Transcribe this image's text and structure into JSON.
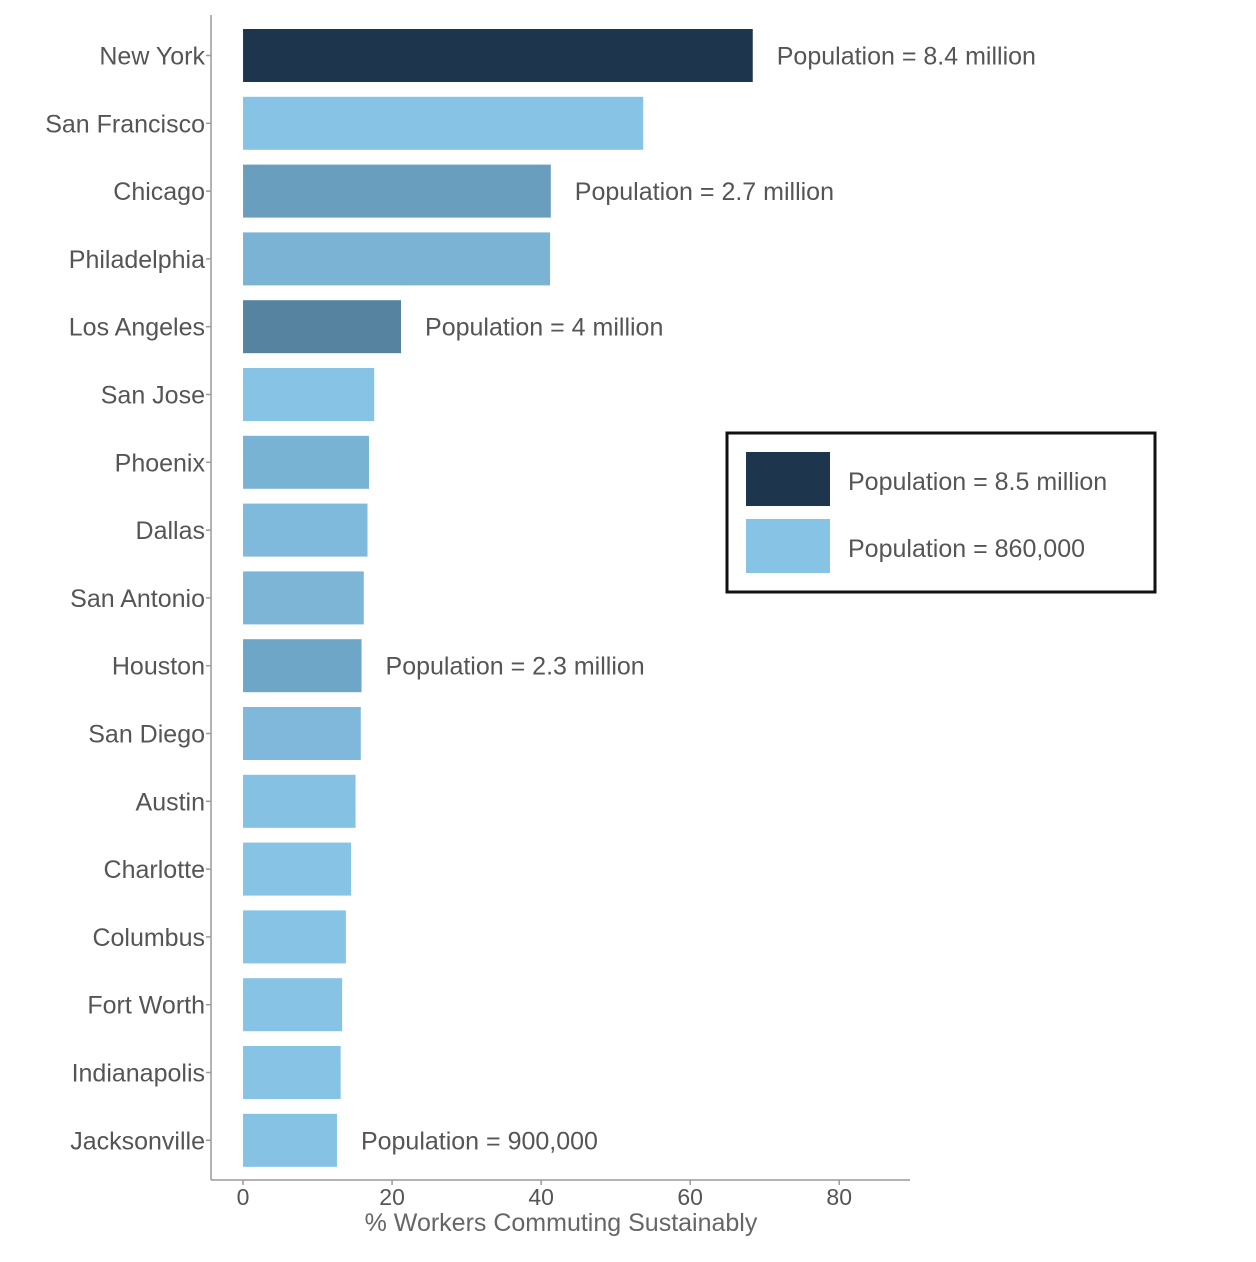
{
  "chart_data": {
    "type": "bar",
    "orientation": "horizontal",
    "title": "",
    "xlabel": "% Workers Commuting Sustainably",
    "ylabel": "",
    "xlim": [
      -4.3,
      89.5
    ],
    "xticks": [
      0,
      20,
      40,
      60,
      80
    ],
    "grid": false,
    "categories": [
      "New York",
      "San Francisco",
      "Chicago",
      "Philadelphia",
      "Los Angeles",
      "San Jose",
      "Phoenix",
      "Dallas",
      "San Antonio",
      "Houston",
      "San Diego",
      "Austin",
      "Charlotte",
      "Columbus",
      "Fort Worth",
      "Indianapolis",
      "Jacksonville"
    ],
    "values": [
      68.4,
      53.7,
      41.3,
      41.2,
      21.2,
      17.6,
      16.9,
      16.7,
      16.2,
      15.9,
      15.8,
      15.1,
      14.5,
      13.8,
      13.3,
      13.1,
      12.6
    ],
    "bar_colors": [
      "#1d364e",
      "#86c3e5",
      "#6a9ebf",
      "#7bb3d5",
      "#56839f",
      "#86c3e5",
      "#79b3d4",
      "#7fb9db",
      "#7db5d7",
      "#6ea6c7",
      "#7fb8da",
      "#84c1e3",
      "#86c3e5",
      "#86c3e5",
      "#86c3e5",
      "#86c3e5",
      "#85c2e4"
    ],
    "annotations": [
      {
        "category": "New York",
        "text": "Population = 8.4 million"
      },
      {
        "category": "Chicago",
        "text": "Population = 2.7 million"
      },
      {
        "category": "Los Angeles",
        "text": "Population = 4 million"
      },
      {
        "category": "Houston",
        "text": "Population = 2.3 million"
      },
      {
        "category": "Jacksonville",
        "text": "Population = 900,000"
      }
    ],
    "legend": {
      "position": "right",
      "entries": [
        {
          "label": "Population = 8.5 million",
          "color": "#1d364e"
        },
        {
          "label": "Population = 860,000",
          "color": "#86c3e5"
        }
      ]
    }
  }
}
